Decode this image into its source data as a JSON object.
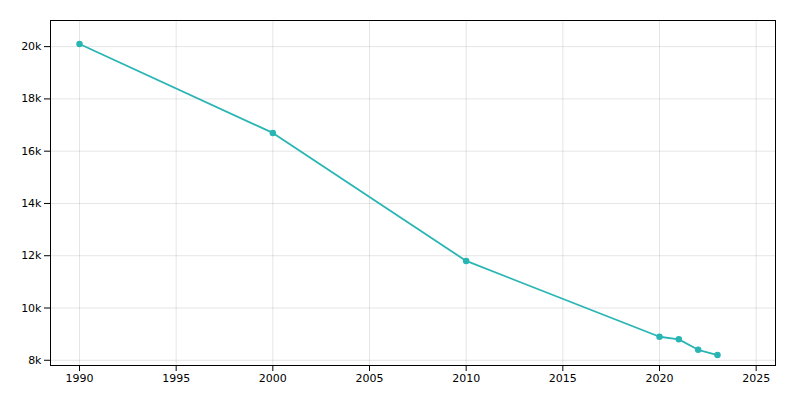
{
  "chart_data": {
    "type": "line",
    "x": [
      1990,
      2000,
      2010,
      2020,
      2021,
      2022,
      2023
    ],
    "values": [
      20100,
      16700,
      11800,
      8900,
      8800,
      8400,
      8200
    ],
    "color": "#2AB5B5",
    "marker": "circle",
    "xlim": [
      1988.5,
      2026
    ],
    "ylim": [
      7800,
      21000
    ],
    "xticks": [
      1990,
      1995,
      2000,
      2005,
      2010,
      2015,
      2020,
      2025
    ],
    "yticks": [
      {
        "value": 8000,
        "label": "8k"
      },
      {
        "value": 10000,
        "label": "10k"
      },
      {
        "value": 12000,
        "label": "12k"
      },
      {
        "value": 14000,
        "label": "14k"
      },
      {
        "value": 16000,
        "label": "16k"
      },
      {
        "value": 18000,
        "label": "18k"
      },
      {
        "value": 20000,
        "label": "20k"
      }
    ],
    "grid": true
  }
}
